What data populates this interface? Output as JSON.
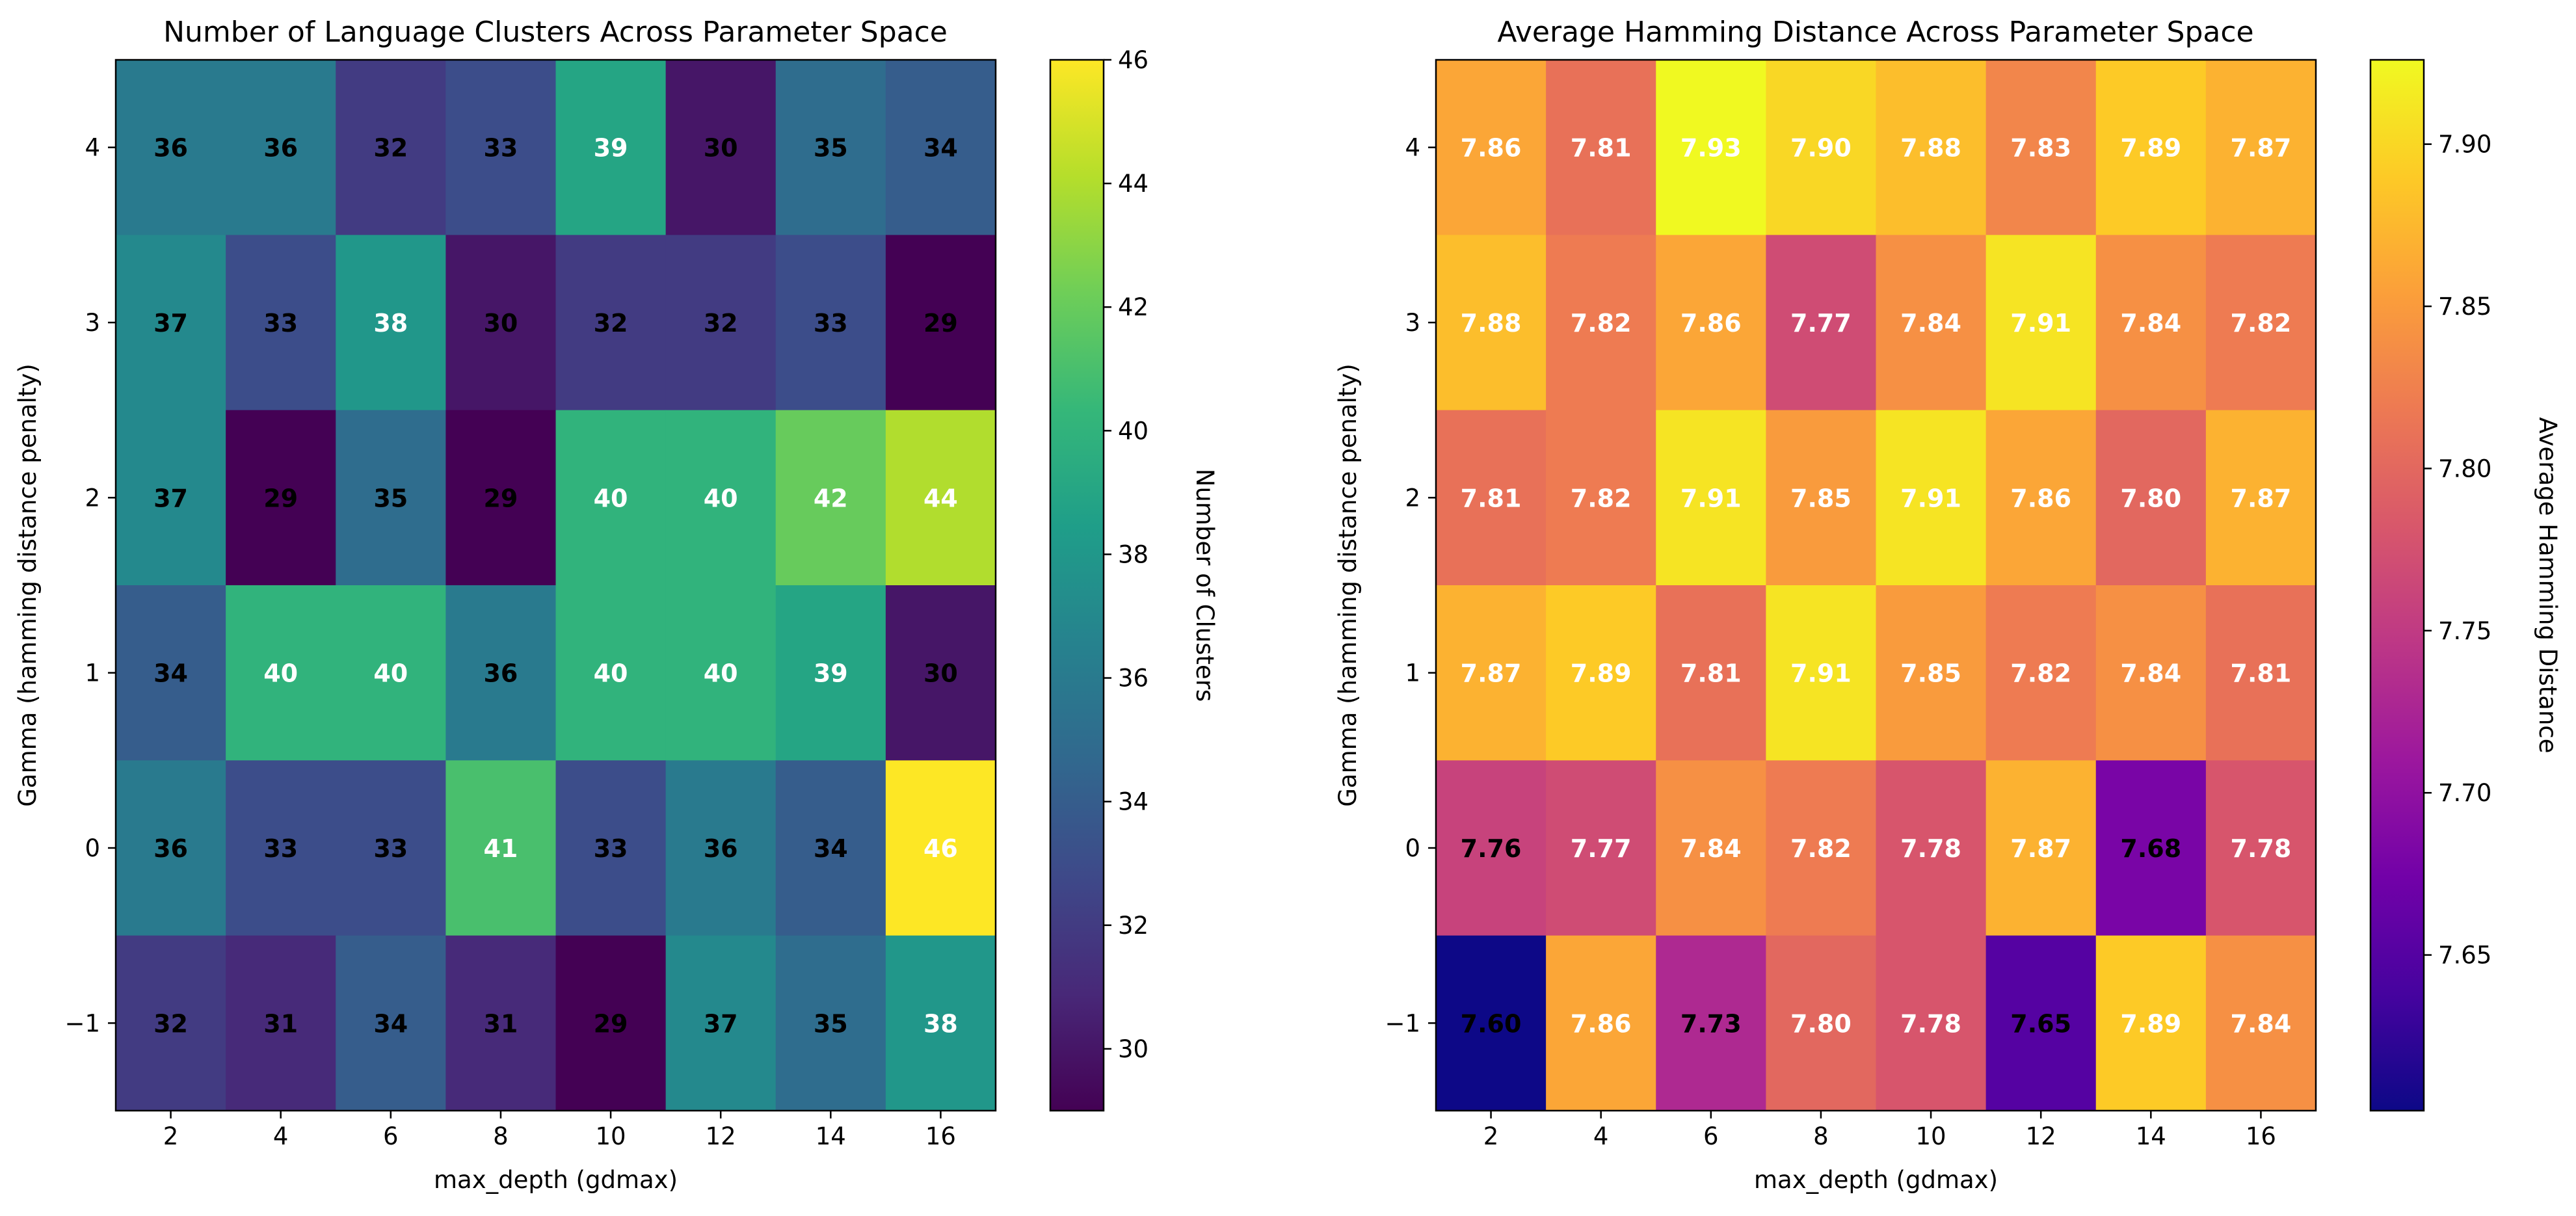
{
  "chart_data": [
    {
      "type": "heatmap",
      "title": "Number of Language Clusters Across Parameter Space",
      "xlabel": "max_depth (gdmax)",
      "ylabel": "Gamma (hamming distance penalty)",
      "colorbar_label": "Number of Clusters",
      "colormap": "viridis",
      "x": [
        2,
        4,
        6,
        8,
        10,
        12,
        14,
        16
      ],
      "y": [
        4,
        3,
        2,
        1,
        0,
        -1
      ],
      "xticks": [
        "2",
        "4",
        "6",
        "8",
        "10",
        "12",
        "14",
        "16"
      ],
      "yticks": [
        "4",
        "3",
        "2",
        "1",
        "0",
        "−1"
      ],
      "values": [
        [
          36,
          36,
          32,
          33,
          39,
          30,
          35,
          34
        ],
        [
          37,
          33,
          38,
          30,
          32,
          32,
          33,
          29
        ],
        [
          37,
          29,
          35,
          29,
          40,
          40,
          42,
          44
        ],
        [
          34,
          40,
          40,
          36,
          40,
          40,
          39,
          30
        ],
        [
          36,
          33,
          33,
          41,
          33,
          36,
          34,
          46
        ],
        [
          32,
          31,
          34,
          31,
          29,
          37,
          35,
          38
        ]
      ],
      "labels": [
        [
          "36",
          "36",
          "32",
          "33",
          "39",
          "30",
          "35",
          "34"
        ],
        [
          "37",
          "33",
          "38",
          "30",
          "32",
          "32",
          "33",
          "29"
        ],
        [
          "37",
          "29",
          "35",
          "29",
          "40",
          "40",
          "42",
          "44"
        ],
        [
          "34",
          "40",
          "40",
          "36",
          "40",
          "40",
          "39",
          "30"
        ],
        [
          "36",
          "33",
          "33",
          "41",
          "33",
          "36",
          "34",
          "46"
        ],
        [
          "32",
          "31",
          "34",
          "31",
          "29",
          "37",
          "35",
          "38"
        ]
      ],
      "label_threshold": 38,
      "crange": [
        29,
        46
      ],
      "colorbar_ticks": [
        30,
        32,
        34,
        36,
        38,
        40,
        42,
        44,
        46
      ],
      "colorbar_ticklabels": [
        "30",
        "32",
        "34",
        "36",
        "38",
        "40",
        "42",
        "44",
        "46"
      ]
    },
    {
      "type": "heatmap",
      "title": "Average Hamming Distance Across Parameter Space",
      "xlabel": "max_depth (gdmax)",
      "ylabel": "Gamma (hamming distance penalty)",
      "colorbar_label": "Average Hamming Distance",
      "colormap": "plasma",
      "x": [
        2,
        4,
        6,
        8,
        10,
        12,
        14,
        16
      ],
      "y": [
        4,
        3,
        2,
        1,
        0,
        -1
      ],
      "xticks": [
        "2",
        "4",
        "6",
        "8",
        "10",
        "12",
        "14",
        "16"
      ],
      "yticks": [
        "4",
        "3",
        "2",
        "1",
        "0",
        "−1"
      ],
      "values": [
        [
          7.86,
          7.81,
          7.93,
          7.9,
          7.88,
          7.83,
          7.89,
          7.87
        ],
        [
          7.88,
          7.82,
          7.86,
          7.77,
          7.84,
          7.91,
          7.84,
          7.82
        ],
        [
          7.81,
          7.82,
          7.91,
          7.85,
          7.91,
          7.86,
          7.8,
          7.87
        ],
        [
          7.87,
          7.89,
          7.81,
          7.91,
          7.85,
          7.82,
          7.84,
          7.81
        ],
        [
          7.76,
          7.77,
          7.84,
          7.82,
          7.78,
          7.87,
          7.68,
          7.78
        ],
        [
          7.6,
          7.86,
          7.73,
          7.8,
          7.78,
          7.65,
          7.89,
          7.84
        ]
      ],
      "labels": [
        [
          "7.86",
          "7.81",
          "7.93",
          "7.90",
          "7.88",
          "7.83",
          "7.89",
          "7.87"
        ],
        [
          "7.88",
          "7.82",
          "7.86",
          "7.77",
          "7.84",
          "7.91",
          "7.84",
          "7.82"
        ],
        [
          "7.81",
          "7.82",
          "7.91",
          "7.85",
          "7.91",
          "7.86",
          "7.80",
          "7.87"
        ],
        [
          "7.87",
          "7.89",
          "7.81",
          "7.91",
          "7.85",
          "7.82",
          "7.84",
          "7.81"
        ],
        [
          "7.76",
          "7.77",
          "7.84",
          "7.82",
          "7.78",
          "7.87",
          "7.68",
          "7.78"
        ],
        [
          "7.60",
          "7.86",
          "7.73",
          "7.80",
          "7.78",
          "7.65",
          "7.89",
          "7.84"
        ]
      ],
      "label_threshold": 7.765,
      "crange": [
        7.602,
        7.926
      ],
      "colorbar_ticks": [
        7.65,
        7.7,
        7.75,
        7.8,
        7.85,
        7.9
      ],
      "colorbar_ticklabels": [
        "7.65",
        "7.70",
        "7.75",
        "7.80",
        "7.85",
        "7.90"
      ]
    }
  ]
}
